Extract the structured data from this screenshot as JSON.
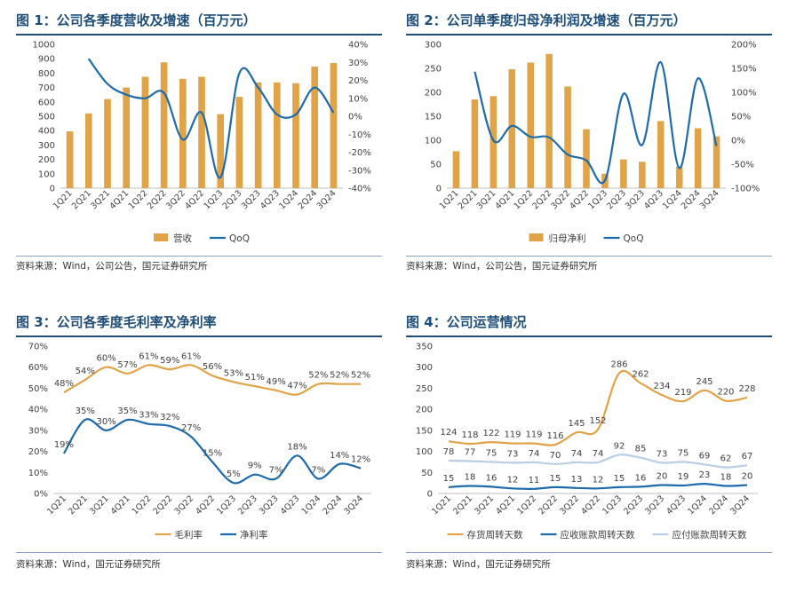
{
  "colors": {
    "gold": "#E0A347",
    "blue": "#1F6BAA",
    "lightblue": "#B9CDE5",
    "title": "#1f4e79"
  },
  "source_common": "资料来源：Wind，公司公告，国元证券研究所",
  "source_bottom": "资料来源：Wind，国元证券研究所",
  "chart_data": [
    {
      "id": "fig1",
      "type": "bar+line",
      "title": "图 1：公司各季度营收及增速（百万元）",
      "categories": [
        "1Q21",
        "2Q21",
        "3Q21",
        "4Q21",
        "1Q22",
        "2Q22",
        "3Q22",
        "4Q22",
        "1Q23",
        "2Q23",
        "3Q23",
        "4Q23",
        "1Q24",
        "2Q24",
        "3Q24"
      ],
      "y_ticks": [
        "0",
        "100",
        "200",
        "300",
        "400",
        "500",
        "600",
        "700",
        "800",
        "900",
        "1000"
      ],
      "y2_ticks": [
        "-40%",
        "-30%",
        "-20%",
        "-10%",
        "0%",
        "10%",
        "20%",
        "30%",
        "40%"
      ],
      "ylim": [
        0,
        1000
      ],
      "y2lim": [
        -40,
        40
      ],
      "series": [
        {
          "name": "营收",
          "kind": "bar",
          "axis": "left",
          "color": "#E0A347",
          "values": [
            395,
            520,
            620,
            700,
            775,
            875,
            760,
            775,
            515,
            635,
            735,
            735,
            730,
            845,
            870
          ]
        },
        {
          "name": "QoQ",
          "kind": "line",
          "axis": "right",
          "color": "#1F6BAA",
          "values": [
            null,
            32,
            18,
            12,
            10,
            13,
            -13,
            2,
            -34,
            24,
            16,
            1,
            1,
            16,
            2
          ]
        }
      ],
      "legend": "bottom"
    },
    {
      "id": "fig2",
      "type": "bar+line",
      "title": "图 2：公司单季度归母净利润及增速（百万元）",
      "categories": [
        "1Q21",
        "2Q21",
        "3Q21",
        "4Q21",
        "1Q22",
        "2Q22",
        "3Q22",
        "4Q22",
        "1Q23",
        "2Q23",
        "3Q23",
        "4Q23",
        "1Q24",
        "2Q24",
        "3Q24"
      ],
      "y_ticks": [
        "0",
        "50",
        "100",
        "150",
        "200",
        "250",
        "300"
      ],
      "y2_ticks": [
        "-100%",
        "-50%",
        "0%",
        "50%",
        "100%",
        "150%",
        "200%"
      ],
      "ylim": [
        0,
        300
      ],
      "y2lim": [
        -100,
        200
      ],
      "series": [
        {
          "name": "归母净利",
          "kind": "bar",
          "axis": "left",
          "color": "#E0A347",
          "values": [
            77,
            185,
            192,
            248,
            262,
            280,
            212,
            123,
            30,
            60,
            55,
            140,
            45,
            125,
            108
          ]
        },
        {
          "name": "QoQ",
          "kind": "line",
          "axis": "right",
          "color": "#1F6BAA",
          "values": [
            null,
            143,
            0,
            30,
            7,
            6,
            -30,
            -42,
            -84,
            97,
            -10,
            163,
            -58,
            129,
            -12
          ]
        }
      ],
      "legend": "bottom"
    },
    {
      "id": "fig3",
      "type": "line",
      "title": "图 3：公司各季度毛利率及净利率",
      "categories": [
        "1Q21",
        "2Q21",
        "3Q21",
        "4Q21",
        "1Q22",
        "2Q22",
        "3Q22",
        "4Q22",
        "1Q23",
        "2Q23",
        "3Q23",
        "4Q23",
        "1Q24",
        "2Q24",
        "3Q24"
      ],
      "y_ticks": [
        "0%",
        "10%",
        "20%",
        "30%",
        "40%",
        "50%",
        "60%",
        "70%"
      ],
      "ylim": [
        0,
        70
      ],
      "series": [
        {
          "name": "毛利率",
          "color": "#E0A347",
          "values": [
            48,
            54,
            60,
            57,
            61,
            59,
            61,
            56,
            53,
            51,
            49,
            47,
            52,
            52,
            52
          ],
          "labels": [
            "48%",
            "54%",
            "60%",
            "57%",
            "61%",
            "59%",
            "61%",
            "56%",
            "53%",
            "51%",
            "49%",
            "47%",
            "52%",
            "52%",
            "52%"
          ]
        },
        {
          "name": "净利率",
          "color": "#1F6BAA",
          "values": [
            19,
            35,
            30,
            35,
            33,
            32,
            27,
            15,
            5,
            9,
            7,
            18,
            7,
            14,
            12
          ],
          "labels": [
            "19%",
            "35%",
            "30%",
            "35%",
            "33%",
            "32%",
            "27%",
            "15%",
            "5%",
            "9%",
            "7%",
            "18%",
            "7%",
            "14%",
            "12%"
          ]
        }
      ],
      "legend": "bottom"
    },
    {
      "id": "fig4",
      "type": "line",
      "title": "图 4：公司运营情况",
      "categories": [
        "1Q21",
        "2Q21",
        "3Q21",
        "4Q21",
        "1Q22",
        "2Q22",
        "3Q22",
        "4Q22",
        "1Q23",
        "2Q23",
        "3Q23",
        "4Q23",
        "1Q24",
        "2Q24",
        "3Q24"
      ],
      "y_ticks": [
        "0",
        "50",
        "100",
        "150",
        "200",
        "250",
        "300",
        "350"
      ],
      "ylim": [
        0,
        350
      ],
      "series": [
        {
          "name": "存货周转天数",
          "color": "#E0A347",
          "values": [
            124,
            118,
            122,
            119,
            119,
            116,
            145,
            152,
            286,
            262,
            234,
            219,
            245,
            220,
            228
          ],
          "labels": [
            "124",
            "118",
            "122",
            "119",
            "119",
            "116",
            "145",
            "152",
            "286",
            "262",
            "234",
            "219",
            "245",
            "220",
            "228"
          ]
        },
        {
          "name": "应收账款周转天数",
          "color": "#1F6BAA",
          "values": [
            15,
            18,
            16,
            12,
            11,
            15,
            13,
            12,
            15,
            16,
            20,
            19,
            23,
            18,
            20
          ],
          "labels": [
            "15",
            "18",
            "16",
            "12",
            "11",
            "15",
            "13",
            "12",
            "15",
            "16",
            "20",
            "19",
            "23",
            "18",
            "20"
          ]
        },
        {
          "name": "应付账款周转天数",
          "color": "#B9CDE5",
          "values": [
            78,
            77,
            75,
            73,
            74,
            70,
            74,
            74,
            92,
            85,
            73,
            75,
            69,
            62,
            67
          ],
          "labels": [
            "78",
            "77",
            "75",
            "73",
            "74",
            "70",
            "74",
            "74",
            "92",
            "85",
            "73",
            "75",
            "69",
            "62",
            "67"
          ]
        }
      ],
      "legend": "bottom"
    }
  ]
}
